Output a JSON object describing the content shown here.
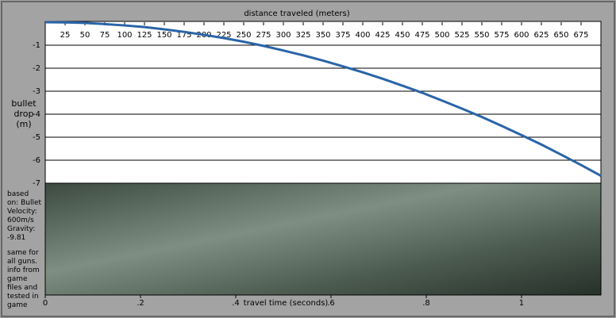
{
  "chart_data": {
    "type": "line",
    "title": "distance traveled (meters)",
    "y_label": "bullet drop (m)",
    "x2_label": "travel time (seconds)",
    "notes": [
      "based on: Bullet Velocity: 600m/s Gravity: -9.81",
      "same for all guns. info from game files and tested in game"
    ],
    "x": [
      0,
      25,
      50,
      75,
      100,
      125,
      150,
      175,
      200,
      225,
      250,
      275,
      300,
      325,
      350,
      375,
      400,
      425,
      450,
      475,
      500,
      525,
      550,
      575,
      600,
      625,
      650,
      675,
      700
    ],
    "series": [
      {
        "color": "#2a64a8",
        "values": [
          0,
          -0.01,
          -0.03,
          -0.08,
          -0.14,
          -0.21,
          -0.31,
          -0.42,
          -0.55,
          -0.69,
          -0.85,
          -1.03,
          -1.23,
          -1.44,
          -1.67,
          -1.92,
          -2.18,
          -2.46,
          -2.76,
          -3.07,
          -3.41,
          -3.76,
          -4.12,
          -4.51,
          -4.91,
          -5.32,
          -5.76,
          -6.21,
          -6.68
        ]
      }
    ],
    "xlim": [
      0,
      700
    ],
    "xticks": [
      25,
      50,
      75,
      100,
      125,
      150,
      175,
      200,
      225,
      250,
      275,
      300,
      325,
      350,
      375,
      400,
      425,
      450,
      475,
      500,
      525,
      550,
      575,
      600,
      625,
      650,
      675
    ],
    "ylim": [
      -7,
      0
    ],
    "yticks": [
      -1,
      -2,
      -3,
      -4,
      -5,
      -6,
      -7
    ],
    "x2lim": [
      0,
      1.1667
    ],
    "x2ticks": [
      0,
      {
        "value": 0.2,
        "label": ".2"
      },
      {
        "value": 0.4,
        "label": ".4"
      },
      {
        "value": 0.6,
        "label": ".6"
      },
      {
        "value": 0.8,
        "label": ".8"
      },
      1
    ],
    "grid": true
  }
}
